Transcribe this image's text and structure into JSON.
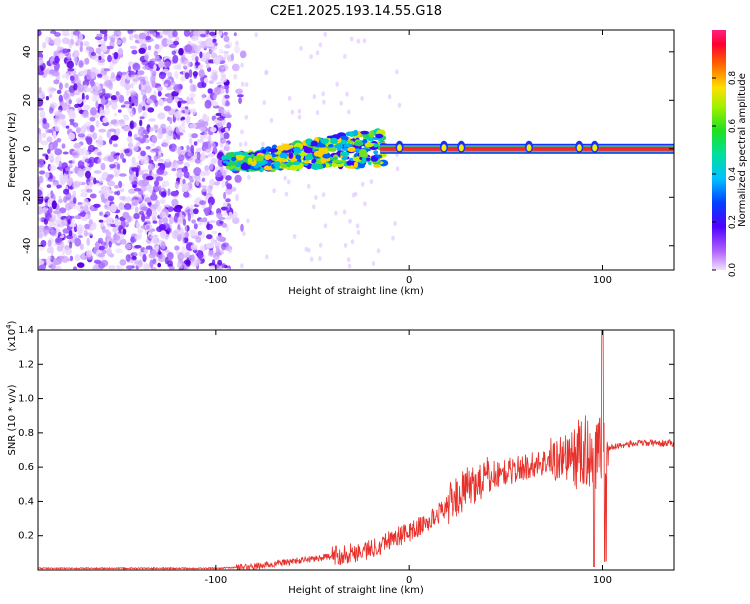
{
  "title": "C2E1.2025.193.14.55.G18",
  "chart_data": [
    {
      "type": "heatmap",
      "xlabel": "Height of straight line (km)",
      "ylabel": "Frequency (Hz)",
      "xlim": [
        -192,
        137
      ],
      "ylim": [
        -50,
        49
      ],
      "xticks": [
        -100,
        0,
        100
      ],
      "yticks": [
        -40,
        -20,
        0,
        20,
        40
      ],
      "colorbar": {
        "label": "Normalized spectral amplitude",
        "range": [
          0,
          1
        ],
        "ticks": [
          0.0,
          0.2,
          0.4,
          0.6,
          0.8
        ]
      },
      "features": {
        "noise_x_range": [
          -192,
          -95
        ],
        "signal_band": [
          {
            "x": -95,
            "f": -5
          },
          {
            "x": -80,
            "f": -5
          },
          {
            "x": -60,
            "f": -3
          },
          {
            "x": -40,
            "f": -1
          },
          {
            "x": -20,
            "f": 0
          },
          {
            "x": 0,
            "f": 0
          },
          {
            "x": 50,
            "f": 0
          },
          {
            "x": 100,
            "f": 0
          },
          {
            "x": 137,
            "f": 0
          }
        ]
      }
    },
    {
      "type": "line",
      "xlabel": "Height of straight line (km)",
      "ylabel": "SNR (10 * v/v)",
      "scale_label": "(x10",
      "scale_exp": "4",
      "xlim": [
        -192,
        137
      ],
      "ylim": [
        0,
        1.4
      ],
      "xticks": [
        -100,
        0,
        100
      ],
      "yticks": [
        0.2,
        0.4,
        0.6,
        0.8,
        1.0,
        1.2,
        1.4
      ],
      "series_color": "#e8302a",
      "trend": [
        {
          "x": -192,
          "y": 0.01
        },
        {
          "x": -100,
          "y": 0.01
        },
        {
          "x": -80,
          "y": 0.02
        },
        {
          "x": -60,
          "y": 0.05
        },
        {
          "x": -40,
          "y": 0.08
        },
        {
          "x": -20,
          "y": 0.12
        },
        {
          "x": -10,
          "y": 0.18
        },
        {
          "x": 0,
          "y": 0.22
        },
        {
          "x": 10,
          "y": 0.28
        },
        {
          "x": 20,
          "y": 0.38
        },
        {
          "x": 30,
          "y": 0.48
        },
        {
          "x": 40,
          "y": 0.54
        },
        {
          "x": 50,
          "y": 0.57
        },
        {
          "x": 60,
          "y": 0.6
        },
        {
          "x": 70,
          "y": 0.63
        },
        {
          "x": 80,
          "y": 0.66
        },
        {
          "x": 90,
          "y": 0.68
        },
        {
          "x": 100,
          "y": 0.7
        },
        {
          "x": 110,
          "y": 0.73
        },
        {
          "x": 120,
          "y": 0.74
        },
        {
          "x": 137,
          "y": 0.74
        }
      ]
    }
  ]
}
